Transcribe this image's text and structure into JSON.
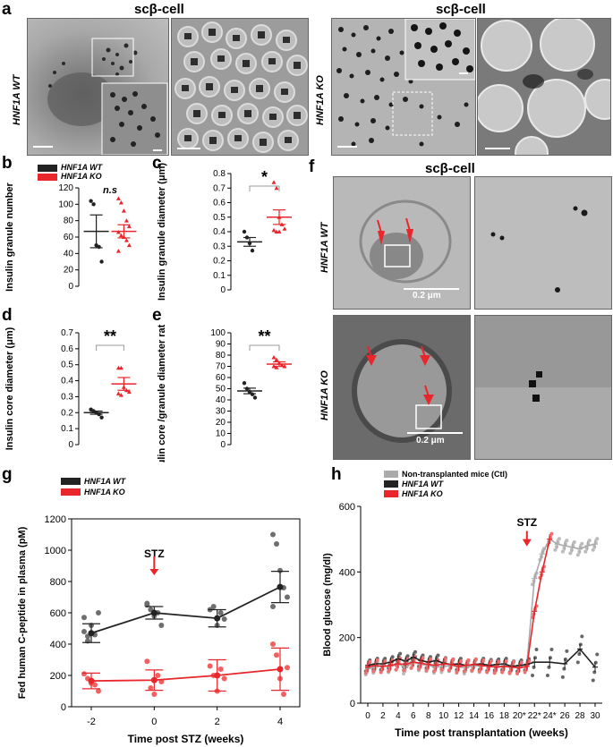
{
  "panels": {
    "a": "a",
    "b": "b",
    "c": "c",
    "d": "d",
    "e": "e",
    "f": "f",
    "g": "g",
    "h": "h"
  },
  "titles": {
    "a_left": "scβ-cell",
    "a_right": "scβ-cell",
    "f": "scβ-cell"
  },
  "rowlabels": {
    "a_wt": "HNF1A WT",
    "a_ko": "HNF1A KO",
    "f_wt": "HNF1A WT",
    "f_ko": "HNF1A KO"
  },
  "f_scalebar_wt": "0.2 μm",
  "f_scalebar_ko": "0.2 μm",
  "legend_bcde": {
    "wt": "HNF1A WT",
    "ko": "HNF1A KO"
  },
  "colors": {
    "wt": "#222222",
    "ko": "#e8262b",
    "ctl": "#aaaaaa",
    "wt_light": "#707070"
  },
  "chart_data": [
    {
      "panel": "b",
      "type": "scatter",
      "ylabel": "Insulin granule number",
      "ylim": [
        0,
        120
      ],
      "yticks": [
        0,
        20,
        40,
        60,
        80,
        100,
        120
      ],
      "annotation": "n.s",
      "series": [
        {
          "name": "HNF1A WT",
          "values": [
            104,
            100,
            50,
            48,
            30
          ],
          "mean": 67,
          "sem": 20
        },
        {
          "name": "HNF1A KO",
          "values": [
            107,
            102,
            92,
            80,
            73,
            66,
            62,
            60,
            56,
            50,
            43
          ],
          "mean": 67,
          "sem": 8
        }
      ]
    },
    {
      "panel": "c",
      "type": "scatter",
      "ylabel": "Insulin granule diameter (μm)",
      "ylim": [
        0,
        0.8
      ],
      "yticks": [
        0,
        0.1,
        0.2,
        0.3,
        0.4,
        0.5,
        0.6,
        0.7,
        0.8
      ],
      "annotation": "*",
      "series": [
        {
          "name": "HNF1A WT",
          "values": [
            0.4,
            0.36,
            0.32,
            0.27
          ],
          "mean": 0.33,
          "sem": 0.03
        },
        {
          "name": "HNF1A KO",
          "values": [
            0.74,
            0.7,
            0.5,
            0.45,
            0.42,
            0.41,
            0.4,
            0.4
          ],
          "mean": 0.5,
          "sem": 0.05
        }
      ]
    },
    {
      "panel": "d",
      "type": "scatter",
      "ylabel": "Insulin core diameter (μm)",
      "ylim": [
        0,
        0.7
      ],
      "yticks": [
        0,
        0.1,
        0.2,
        0.3,
        0.4,
        0.5,
        0.6,
        0.7
      ],
      "annotation": "**",
      "series": [
        {
          "name": "HNF1A WT",
          "values": [
            0.22,
            0.21,
            0.2,
            0.19,
            0.17
          ],
          "mean": 0.2,
          "sem": 0.01
        },
        {
          "name": "HNF1A KO",
          "values": [
            0.48,
            0.48,
            0.36,
            0.34,
            0.33,
            0.32,
            0.31
          ],
          "mean": 0.38,
          "sem": 0.04
        }
      ]
    },
    {
      "panel": "e",
      "type": "scatter",
      "ylabel": "Insulin core /granule diameter ratio (%)",
      "ylim": [
        0,
        100
      ],
      "yticks": [
        0,
        10,
        20,
        30,
        40,
        50,
        60,
        70,
        80,
        90,
        100
      ],
      "annotation": "**",
      "series": [
        {
          "name": "HNF1A WT",
          "values": [
            55,
            50,
            47,
            45,
            42
          ],
          "mean": 48,
          "sem": 2.5
        },
        {
          "name": "HNF1A KO",
          "values": [
            78,
            76,
            73,
            71,
            70,
            70,
            69
          ],
          "mean": 72,
          "sem": 2
        }
      ]
    },
    {
      "panel": "g",
      "type": "line",
      "xlabel": "Time post STZ (weeks)",
      "ylabel": "Fed human C-peptide in plasma (pM)",
      "ylim": [
        0,
        1200
      ],
      "yticks": [
        0,
        200,
        400,
        600,
        800,
        1000,
        1200
      ],
      "x": [
        -2,
        0,
        2,
        4
      ],
      "annotation": "STZ",
      "series": [
        {
          "name": "HNF1A WT",
          "means": [
            470,
            600,
            565,
            765
          ],
          "sems": [
            60,
            40,
            55,
            100
          ],
          "points": [
            [
              480,
              420,
              520,
              460,
              600,
              570,
              450
            ],
            [
              650,
              620,
              580,
              600,
              520,
              660
            ],
            [
              620,
              640,
              520,
              600,
              560
            ],
            [
              1100,
              1040,
              870,
              760,
              700,
              640
            ]
          ]
        },
        {
          "name": "HNF1A KO",
          "means": [
            165,
            170,
            200,
            240
          ],
          "sems": [
            50,
            65,
            100,
            135
          ],
          "points": [
            [
              210,
              180,
              150,
              140,
              100
            ],
            [
              290,
              120,
              80,
              200,
              160
            ],
            [
              260,
              200,
              100,
              240,
              180
            ],
            [
              400,
              330,
              180,
              80,
              250
            ]
          ]
        }
      ]
    },
    {
      "panel": "h",
      "type": "line",
      "xlabel": "Time post transplantation (weeks)",
      "ylabel": "Blood glucose (mg/dl)",
      "ylim": [
        0,
        600
      ],
      "yticks": [
        0,
        200,
        400,
        600
      ],
      "x": [
        "0",
        "2",
        "4",
        "6",
        "8",
        "10",
        "12",
        "14",
        "16",
        "18",
        "20*",
        "22*",
        "24*",
        "26",
        "28",
        "30"
      ],
      "annotation": "STZ",
      "series": [
        {
          "name": "Non-transplanted mice (Ctl)",
          "x": [
            0,
            1,
            2,
            3,
            4,
            5,
            6,
            7,
            8,
            9,
            10,
            11,
            12,
            13,
            14,
            15,
            16,
            17,
            18,
            19,
            20,
            21,
            22,
            23,
            24,
            25,
            26,
            27,
            28,
            29,
            30
          ],
          "values": [
            105,
            110,
            115,
            112,
            120,
            108,
            125,
            118,
            115,
            110,
            112,
            115,
            110,
            108,
            115,
            112,
            118,
            110,
            115,
            108,
            110,
            120,
            380,
            455,
            500,
            485,
            480,
            475,
            470,
            480,
            485
          ]
        },
        {
          "name": "HNF1A WT",
          "x": [
            0,
            1,
            2,
            3,
            4,
            5,
            6,
            7,
            8,
            9,
            10,
            11,
            12,
            13,
            14,
            15,
            16,
            17,
            18,
            19,
            20,
            21,
            22,
            24,
            26,
            28,
            30
          ],
          "values": [
            115,
            120,
            120,
            125,
            135,
            128,
            140,
            130,
            125,
            130,
            122,
            118,
            120,
            115,
            118,
            120,
            115,
            118,
            120,
            112,
            115,
            118,
            125,
            125,
            120,
            165,
            110
          ]
        },
        {
          "name": "HNF1A KO",
          "x": [
            0,
            1,
            2,
            3,
            4,
            5,
            6,
            7,
            8,
            9,
            10,
            11,
            12,
            13,
            14,
            15,
            16,
            17,
            18,
            19,
            20,
            21,
            22,
            23,
            24
          ],
          "values": [
            110,
            115,
            112,
            115,
            120,
            118,
            125,
            122,
            118,
            115,
            120,
            118,
            112,
            115,
            118,
            115,
            112,
            110,
            112,
            110,
            108,
            112,
            280,
            400,
            500
          ]
        }
      ]
    }
  ]
}
